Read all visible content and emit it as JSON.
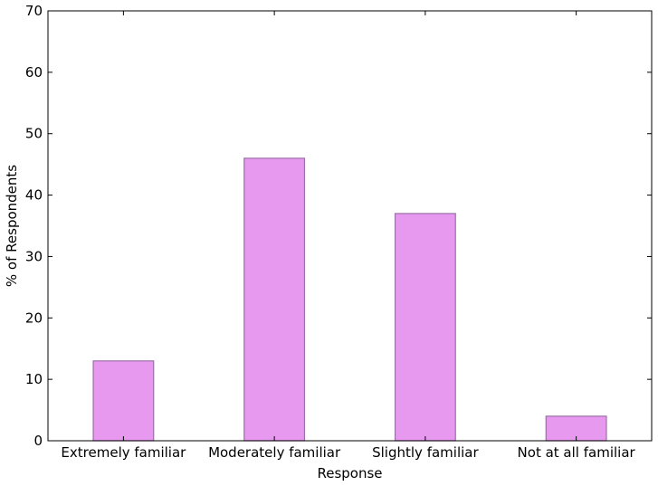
{
  "chart_data": {
    "type": "bar",
    "categories": [
      "Extremely familiar",
      "Moderately familiar",
      "Slightly familiar",
      "Not at all familiar"
    ],
    "values": [
      13,
      46,
      37,
      4
    ],
    "title": "",
    "xlabel": "Response",
    "ylabel": "% of Respondents",
    "ylim": [
      0,
      70
    ],
    "yticks": [
      "0",
      "10",
      "20",
      "30",
      "40",
      "50",
      "60",
      "70"
    ],
    "grid": false,
    "colors": {
      "bar_fill": "#e699ee",
      "bar_edge": "#9b6fa8",
      "axis": "#000000"
    }
  }
}
